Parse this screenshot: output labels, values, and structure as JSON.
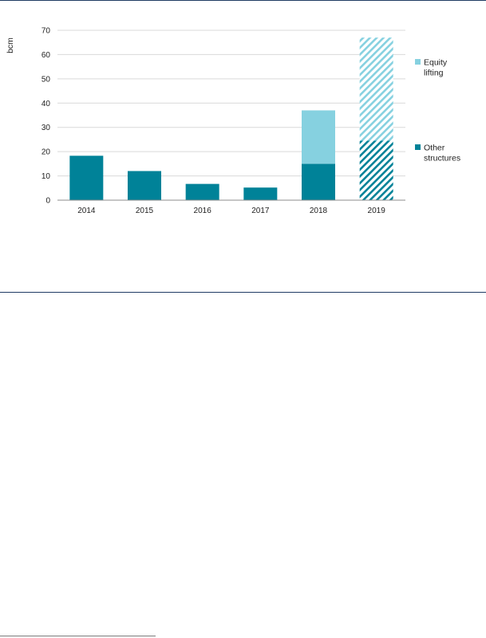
{
  "chart_data": {
    "type": "bar",
    "stacked": true,
    "categories": [
      "2014",
      "2015",
      "2016",
      "2017",
      "2018",
      "2019"
    ],
    "series": [
      {
        "name": "Other structures",
        "color": "#008298",
        "values": [
          18.3,
          12,
          6.7,
          5.2,
          15,
          24.5
        ]
      },
      {
        "name": "Equity lifting",
        "color": "#86d1e0",
        "values": [
          0,
          0,
          0,
          0,
          22,
          42.5
        ]
      }
    ],
    "hatched_categories": [
      "2019"
    ],
    "ylabel": "bcm",
    "ylim": [
      0,
      70
    ],
    "yticks": [
      0,
      10,
      20,
      30,
      40,
      50,
      60,
      70
    ],
    "grid": true,
    "legend_position": "right",
    "legend": [
      {
        "lines": [
          "Equity",
          "lifting"
        ],
        "series": "Equity lifting",
        "color": "#86d1e0"
      },
      {
        "lines": [
          "Other",
          "structures"
        ],
        "series": "Other structures",
        "color": "#008298"
      }
    ]
  }
}
